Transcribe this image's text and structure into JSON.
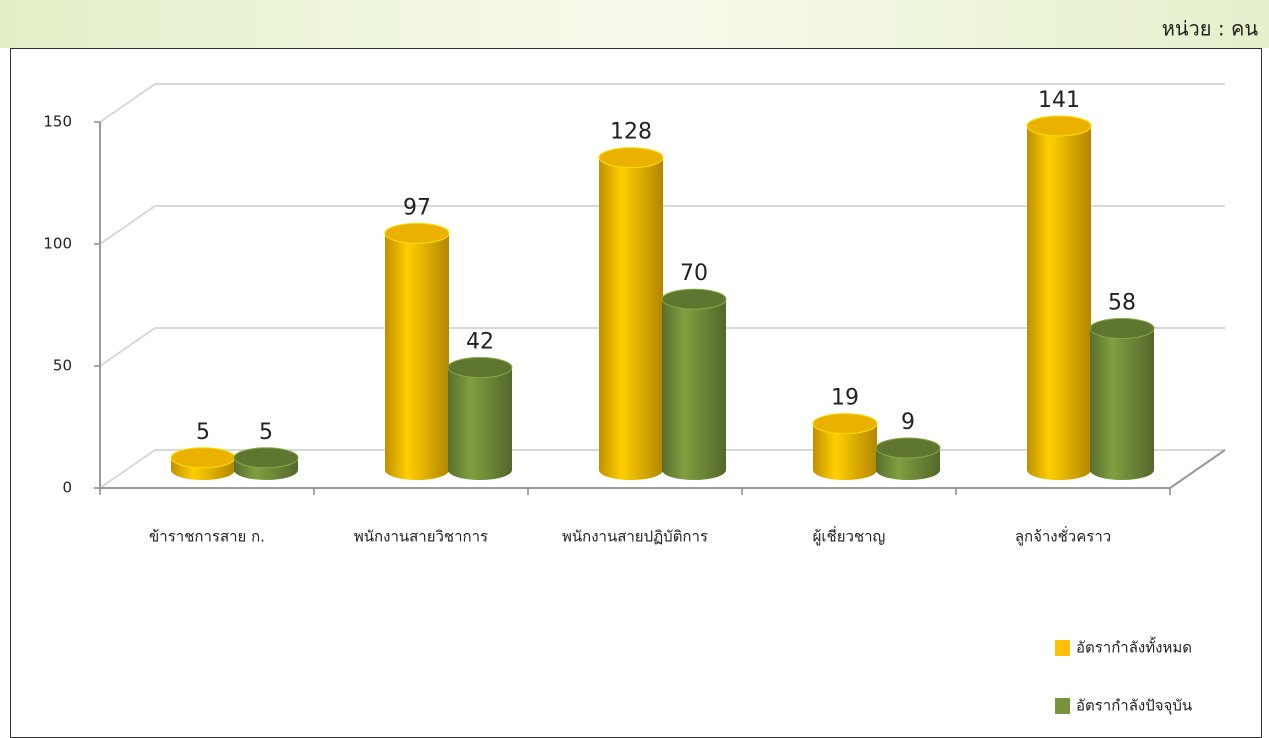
{
  "unit_label": "หน่วย : คน",
  "chart_data": {
    "type": "bar3d",
    "categories": [
      "ข้าราชการสาย ก.",
      "พนักงานสายวิชาการ",
      "พนักงานสายปฏิบัติการ",
      "ผู้เชี่ยวชาญ",
      "ลูกจ้างชั่วคราว"
    ],
    "series": [
      {
        "name": "อัตรากำลังทั้งหมด",
        "color": "#FFC000",
        "values": [
          5,
          97,
          128,
          19,
          141
        ]
      },
      {
        "name": "อัตรากำลังปัจจุบัน",
        "color": "#77933C",
        "values": [
          5,
          42,
          70,
          9,
          58
        ]
      }
    ],
    "ylim": [
      0,
      150
    ],
    "yticks": [
      0,
      50,
      100,
      150
    ],
    "grid": true,
    "legend": "bottom-right"
  }
}
